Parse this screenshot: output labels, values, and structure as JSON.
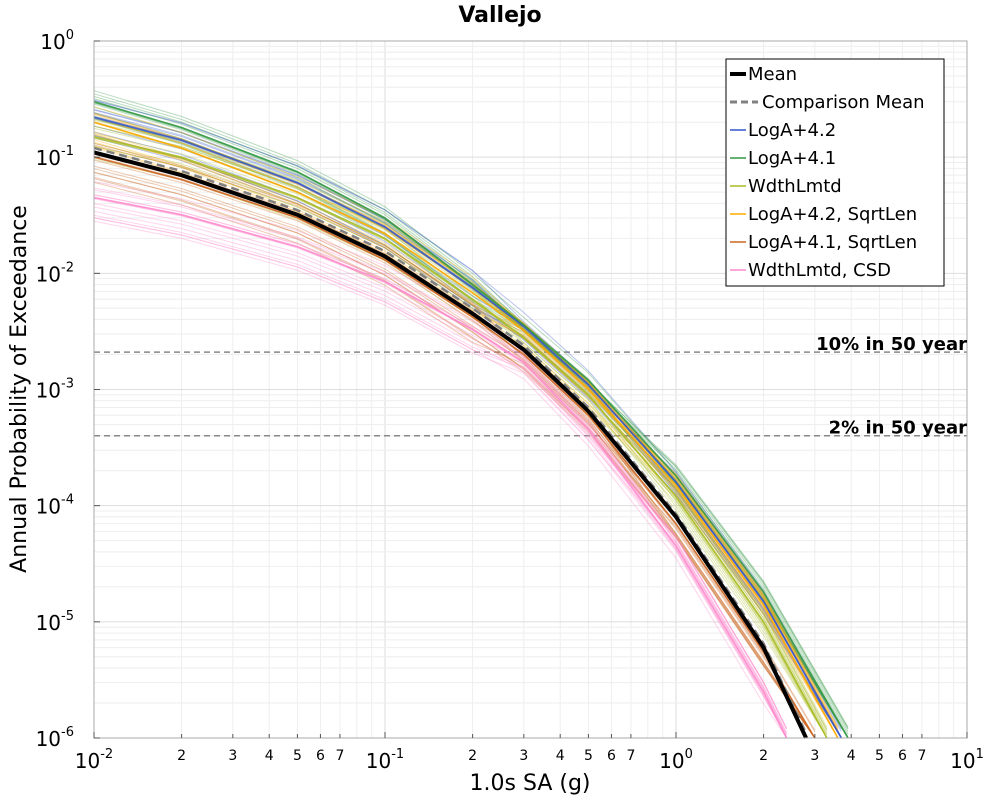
{
  "chart_data": {
    "type": "line",
    "title": "Vallejo",
    "xlabel": "1.0s SA (g)",
    "ylabel": "Annual Probability of Exceedance",
    "xscale": "log",
    "yscale": "log",
    "xlim": [
      0.01,
      10
    ],
    "ylim": [
      1e-06,
      1
    ],
    "grid": true,
    "legend_position": "top-right",
    "x_major_ticks": [
      {
        "base": "10",
        "exp": "-2",
        "value": 0.01
      },
      {
        "base": "10",
        "exp": "-1",
        "value": 0.1
      },
      {
        "base": "10",
        "exp": "0",
        "value": 1
      },
      {
        "base": "10",
        "exp": "1",
        "value": 10
      }
    ],
    "x_minor_tick_labels": [
      "2",
      "3",
      "4",
      "5",
      "6",
      "7"
    ],
    "y_major_ticks": [
      {
        "base": "10",
        "exp": "0",
        "value": 1
      },
      {
        "base": "10",
        "exp": "-1",
        "value": 0.1
      },
      {
        "base": "10",
        "exp": "-2",
        "value": 0.01
      },
      {
        "base": "10",
        "exp": "-3",
        "value": 0.001
      },
      {
        "base": "10",
        "exp": "-4",
        "value": 0.0001
      },
      {
        "base": "10",
        "exp": "-5",
        "value": 1e-05
      },
      {
        "base": "10",
        "exp": "-6",
        "value": 1e-06
      }
    ],
    "reference_lines": [
      {
        "label": "10% in 50 year",
        "y": 0.0021,
        "color": "#888888"
      },
      {
        "label": "2% in 50 year",
        "y": 0.0004,
        "color": "#888888"
      }
    ],
    "legend": [
      {
        "label": "Mean",
        "color": "#000000",
        "style": "solid-thick"
      },
      {
        "label": "Comparison Mean",
        "color": "#808080",
        "style": "dashed"
      },
      {
        "label": "LogA+4.2",
        "color": "#3355cc",
        "style": "solid"
      },
      {
        "label": "LogA+4.1",
        "color": "#339944",
        "style": "solid"
      },
      {
        "label": "WdthLmtd",
        "color": "#aabb22",
        "style": "solid"
      },
      {
        "label": "LogA+4.2, SqrtLen",
        "color": "#ffaa00",
        "style": "solid"
      },
      {
        "label": "LogA+4.1, SqrtLen",
        "color": "#cc6622",
        "style": "solid"
      },
      {
        "label": "WdthLmtd, CSD",
        "color": "#ff88cc",
        "style": "solid"
      }
    ],
    "series": [
      {
        "name": "Mean",
        "color": "#000000",
        "x": [
          0.01,
          0.02,
          0.05,
          0.1,
          0.2,
          0.3,
          0.5,
          1.0,
          2.0,
          2.8
        ],
        "y": [
          0.11,
          0.07,
          0.032,
          0.014,
          0.0045,
          0.0022,
          0.00065,
          8e-05,
          6e-06,
          1e-06
        ]
      },
      {
        "name": "Comparison Mean",
        "color": "#808080",
        "x": [
          0.01,
          0.02,
          0.05,
          0.1,
          0.2,
          0.3,
          0.5,
          1.0,
          2.0,
          2.8
        ],
        "y": [
          0.12,
          0.076,
          0.035,
          0.0155,
          0.005,
          0.0024,
          0.0007,
          8.5e-05,
          6.5e-06,
          1.1e-06
        ]
      },
      {
        "name": "LogA+4.2",
        "color": "#3355cc",
        "x": [
          0.01,
          0.02,
          0.05,
          0.1,
          0.2,
          0.3,
          0.5,
          1.0,
          2.0,
          3.7
        ],
        "y": [
          0.22,
          0.14,
          0.06,
          0.025,
          0.0075,
          0.0035,
          0.0011,
          0.00016,
          1.5e-05,
          1e-06
        ]
      },
      {
        "name": "LogA+4.1",
        "color": "#339944",
        "x": [
          0.01,
          0.02,
          0.05,
          0.1,
          0.2,
          0.3,
          0.5,
          1.0,
          2.0,
          3.9
        ],
        "y": [
          0.3,
          0.18,
          0.075,
          0.03,
          0.008,
          0.0036,
          0.0012,
          0.00018,
          1.8e-05,
          1e-06
        ]
      },
      {
        "name": "WdthLmtd",
        "color": "#aabb22",
        "x": [
          0.01,
          0.02,
          0.05,
          0.1,
          0.2,
          0.3,
          0.5,
          1.0,
          2.0,
          3.3
        ],
        "y": [
          0.15,
          0.1,
          0.045,
          0.02,
          0.006,
          0.0028,
          0.0009,
          0.00012,
          1e-05,
          1e-06
        ]
      },
      {
        "name": "LogA+4.2, SqrtLen",
        "color": "#ffaa00",
        "x": [
          0.01,
          0.02,
          0.05,
          0.1,
          0.2,
          0.3,
          0.5,
          1.0,
          2.0,
          3.6
        ],
        "y": [
          0.2,
          0.12,
          0.05,
          0.022,
          0.0068,
          0.0032,
          0.001,
          0.00015,
          1.4e-05,
          1e-06
        ]
      },
      {
        "name": "LogA+4.1, SqrtLen",
        "color": "#cc6622",
        "x": [
          0.01,
          0.02,
          0.05,
          0.1,
          0.2,
          0.3,
          0.5,
          1.0,
          2.0,
          3.0
        ],
        "y": [
          0.1,
          0.064,
          0.03,
          0.013,
          0.0042,
          0.002,
          0.0006,
          7e-05,
          5.5e-06,
          1e-06
        ]
      },
      {
        "name": "WdthLmtd, CSD",
        "color": "#ff88cc",
        "x": [
          0.01,
          0.02,
          0.05,
          0.1,
          0.2,
          0.3,
          0.5,
          1.0,
          2.0,
          2.4
        ],
        "y": [
          0.045,
          0.032,
          0.017,
          0.0085,
          0.0033,
          0.0017,
          0.00045,
          4.5e-05,
          2.5e-06,
          1e-06
        ]
      }
    ]
  }
}
